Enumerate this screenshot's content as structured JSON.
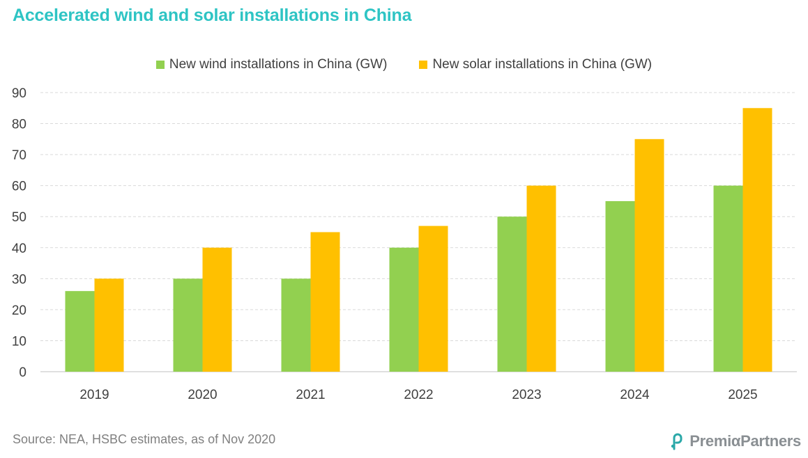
{
  "title": "Accelerated wind and solar installations in China",
  "source": "Source: NEA, HSBC estimates, as of Nov 2020",
  "logo": {
    "text": "PremiαPartners"
  },
  "colors": {
    "wind": "#92d050",
    "solar": "#ffc000",
    "title": "#2ec4c4",
    "logo_mark": "#2aa8a8"
  },
  "chart_data": {
    "type": "bar",
    "title": "",
    "xlabel": "",
    "ylabel": "",
    "categories": [
      "2019",
      "2020",
      "2021",
      "2022",
      "2023",
      "2024",
      "2025"
    ],
    "series": [
      {
        "name": "New wind installations in China (GW)",
        "values": [
          26,
          30,
          30,
          40,
          50,
          55,
          60
        ]
      },
      {
        "name": "New solar installations in China (GW)",
        "values": [
          30,
          40,
          45,
          47,
          60,
          75,
          85
        ]
      }
    ],
    "ylim": [
      0,
      90
    ],
    "yticks": [
      0,
      10,
      20,
      30,
      40,
      50,
      60,
      70,
      80,
      90
    ],
    "grid": true,
    "legend_position": "top-center"
  }
}
